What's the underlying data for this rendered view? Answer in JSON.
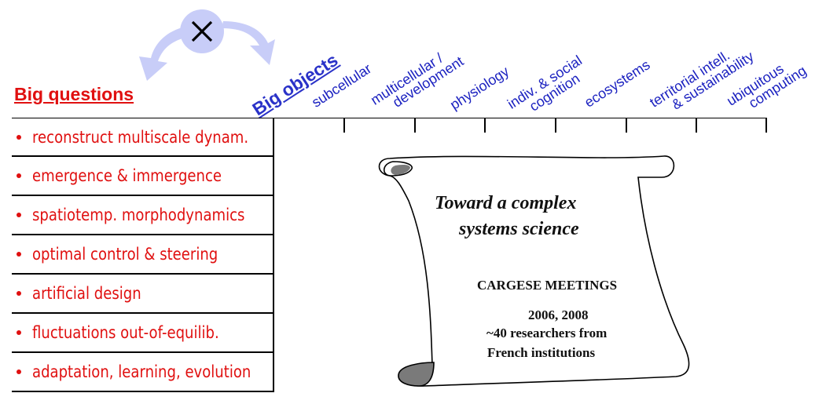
{
  "big_questions": {
    "heading": "Big questions",
    "items": [
      "reconstruct multiscale dynam.",
      "emergence & immergence",
      "spatiotemp. morphodynamics",
      "optimal control & steering",
      "artificial design",
      "fluctuations out-of-equilib.",
      "adaptation, learning, evolution"
    ]
  },
  "big_objects": {
    "heading": "Big objects",
    "columns": [
      [
        "subcellular"
      ],
      [
        "multicellular /",
        "development"
      ],
      [
        "physiology"
      ],
      [
        "indiv. & social",
        "cognition"
      ],
      [
        "ecosystems"
      ],
      [
        "territorial intell.",
        "& sustainability"
      ],
      [
        "ubiquitous",
        "computing"
      ]
    ]
  },
  "scroll": {
    "title_line1": "Toward a complex",
    "title_line2": "systems science",
    "meetings": "CARGESE MEETINGS",
    "years": "2006, 2008",
    "researchers": "~40 researchers from",
    "institutions": "French institutions"
  },
  "colors": {
    "questions": "#e01010",
    "objects": "#1c22c0",
    "arrows": "#c8cdf8",
    "scroll_shade": "#7a7a7a"
  },
  "icons": {
    "cross": "cross-icon",
    "arrows": "curved-double-arrow"
  }
}
